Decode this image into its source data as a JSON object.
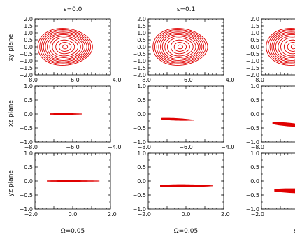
{
  "figure": {
    "colors": {
      "curve": "#e00000",
      "axes": "#000000",
      "text": "#111111"
    },
    "row_labels": [
      "xy plane",
      "xz plane",
      "yz plane"
    ],
    "column_titles": [
      "ε=0.0",
      "ε=0.1",
      "ε="
    ],
    "column_xlabels": [
      "Ω=0.05",
      "Ω=0.05",
      "Ω="
    ],
    "note": ""
  },
  "chart_data": [
    {
      "type": "line",
      "panel": "xy-eps-0.0",
      "row": 0,
      "col": 0,
      "xlim": [
        -8.0,
        -4.0
      ],
      "ylim": [
        -2.0,
        2.0
      ],
      "xticks": [
        "−8.0",
        "−6.0",
        "−4.0"
      ],
      "xtick_values": [
        -8.0,
        -6.0,
        -4.0
      ],
      "yticks": [
        "2.0",
        "1.5",
        "1.0",
        "0.5",
        "0.0",
        "−0.5",
        "−1.0",
        "−1.5",
        "−2.0"
      ],
      "ytick_values": [
        2.0,
        1.5,
        1.0,
        0.5,
        0.0,
        -0.5,
        -1.0,
        -1.5,
        -2.0
      ],
      "series": [
        {
          "curve": "nested-rings",
          "center": [
            -6.4,
            0.0
          ],
          "rx": [
            1.45,
            1.35,
            1.25,
            1.15,
            1.05,
            0.95,
            0.82,
            0.68,
            0.5,
            0.32,
            0.13
          ],
          "ry": [
            1.32,
            1.23,
            1.15,
            1.06,
            0.97,
            0.88,
            0.77,
            0.65,
            0.49,
            0.32,
            0.14
          ],
          "skew": -0.1
        }
      ]
    },
    {
      "type": "line",
      "panel": "xy-eps-0.1",
      "row": 0,
      "col": 1,
      "xlim": [
        -8.0,
        -4.0
      ],
      "ylim": [
        -2.0,
        2.0
      ],
      "xticks": [
        "−8.0",
        "−6.0",
        "−4.0"
      ],
      "xtick_values": [
        -8.0,
        -6.0,
        -4.0
      ],
      "yticks": [
        "2.0",
        "1.5",
        "1.0",
        "0.5",
        "0.0",
        "−0.5",
        "−1.0",
        "−1.5",
        "−2.0"
      ],
      "ytick_values": [
        2.0,
        1.5,
        1.0,
        0.5,
        0.0,
        -0.5,
        -1.0,
        -1.5,
        -2.0
      ],
      "series": [
        {
          "curve": "nested-rings",
          "center": [
            -6.3,
            0.0
          ],
          "rx": [
            1.45,
            1.35,
            1.25,
            1.15,
            1.05,
            0.95,
            0.82,
            0.68,
            0.5,
            0.32,
            0.13
          ],
          "ry": [
            1.32,
            1.23,
            1.15,
            1.06,
            0.97,
            0.88,
            0.77,
            0.65,
            0.49,
            0.32,
            0.14
          ],
          "skew": -0.1
        }
      ]
    },
    {
      "type": "line",
      "panel": "xy-eps-clipped",
      "row": 0,
      "col": 2,
      "xlim": [
        -8.0,
        -4.0
      ],
      "ylim": [
        -2.0,
        2.0
      ],
      "xticks": [
        "−8.0"
      ],
      "xtick_values": [
        -8.0
      ],
      "yticks": [
        "2.0",
        "1.5",
        "1.0",
        "0.5",
        "0.0",
        "−0.5",
        "−1.0",
        "−1.5",
        "−2.0"
      ],
      "ytick_values": [
        2.0,
        1.5,
        1.0,
        0.5,
        0.0,
        -0.5,
        -1.0,
        -1.5,
        -2.0
      ],
      "series": [
        {
          "curve": "nested-rings",
          "center": [
            -6.3,
            0.0
          ],
          "rx": [
            1.45,
            1.35,
            1.25,
            1.15,
            1.05,
            0.95,
            0.82,
            0.68,
            0.5,
            0.32,
            0.13
          ],
          "ry": [
            1.32,
            1.23,
            1.15,
            1.06,
            0.97,
            0.88,
            0.77,
            0.65,
            0.49,
            0.32,
            0.14
          ],
          "skew": -0.1
        }
      ]
    },
    {
      "type": "line",
      "panel": "xz-eps-0.0",
      "row": 1,
      "col": 0,
      "xlim": [
        -8.0,
        -4.0
      ],
      "ylim": [
        -1.0,
        1.0
      ],
      "xticks": [
        "−8.0",
        "−6.0",
        "−4.0"
      ],
      "xtick_values": [
        -8.0,
        -6.0,
        -4.0
      ],
      "yticks": [
        "1.0",
        "0.5",
        "0.0",
        "−0.5",
        "−1.0"
      ],
      "ytick_values": [
        1.0,
        0.5,
        0.0,
        -0.5,
        -1.0
      ],
      "series": [
        {
          "curve": "band",
          "x": [
            -7.2,
            -5.5
          ],
          "y": [
            0.0,
            0.0
          ],
          "half_width": 0.015
        }
      ]
    },
    {
      "type": "line",
      "panel": "xz-eps-0.1",
      "row": 1,
      "col": 1,
      "xlim": [
        -8.0,
        -4.0
      ],
      "ylim": [
        -1.0,
        1.0
      ],
      "xticks": [
        "−8.0",
        "−6.0",
        "−4.0"
      ],
      "xtick_values": [
        -8.0,
        -6.0,
        -4.0
      ],
      "yticks": [
        "1.0",
        "0.5",
        "0.0",
        "−0.5",
        "−1.0"
      ],
      "ytick_values": [
        1.0,
        0.5,
        0.0,
        -0.5,
        -1.0
      ],
      "series": [
        {
          "curve": "band",
          "x": [
            -7.3,
            -5.6
          ],
          "y": [
            -0.17,
            -0.22
          ],
          "half_width": 0.03
        }
      ]
    },
    {
      "type": "line",
      "panel": "xz-eps-clipped",
      "row": 1,
      "col": 2,
      "xlim": [
        -8.0,
        -4.0
      ],
      "ylim": [
        -1.0,
        1.0
      ],
      "xticks": [
        "−8.0"
      ],
      "xtick_values": [
        -8.0
      ],
      "yticks": [
        "1.0",
        "0.5",
        "0.0",
        "−0.5",
        "−1.0"
      ],
      "ytick_values": [
        1.0,
        0.5,
        0.0,
        -0.5,
        -1.0
      ],
      "series": [
        {
          "curve": "band",
          "x": [
            -7.4,
            -5.5
          ],
          "y": [
            -0.33,
            -0.44
          ],
          "half_width": 0.05
        }
      ]
    },
    {
      "type": "line",
      "panel": "yz-eps-0.0",
      "row": 2,
      "col": 0,
      "xlim": [
        -2.0,
        2.0
      ],
      "ylim": [
        -1.0,
        1.0
      ],
      "xticks": [
        "−2.0",
        "0.0",
        "2.0"
      ],
      "xtick_values": [
        -2.0,
        0.0,
        2.0
      ],
      "yticks": [
        "1.0",
        "0.5",
        "0.0",
        "−0.5",
        "−1.0"
      ],
      "ytick_values": [
        1.0,
        0.5,
        0.0,
        -0.5,
        -1.0
      ],
      "series": [
        {
          "curve": "band",
          "x": [
            -1.35,
            1.4
          ],
          "y": [
            0.0,
            0.0
          ],
          "half_width": 0.012
        }
      ]
    },
    {
      "type": "line",
      "panel": "yz-eps-0.1",
      "row": 2,
      "col": 1,
      "xlim": [
        -2.0,
        2.0
      ],
      "ylim": [
        -1.0,
        1.0
      ],
      "xticks": [
        "−2.0",
        "0.0",
        "2.0"
      ],
      "xtick_values": [
        -2.0,
        0.0,
        2.0
      ],
      "yticks": [
        "1.0",
        "0.5",
        "0.0",
        "−0.5",
        "−1.0"
      ],
      "ytick_values": [
        1.0,
        0.5,
        0.0,
        -0.5,
        -1.0
      ],
      "series": [
        {
          "curve": "band",
          "x": [
            -1.35,
            1.4
          ],
          "y": [
            -0.17,
            -0.17
          ],
          "half_width": 0.04
        }
      ]
    },
    {
      "type": "line",
      "panel": "yz-eps-clipped",
      "row": 2,
      "col": 2,
      "xlim": [
        -2.0,
        2.0
      ],
      "ylim": [
        -1.0,
        1.0
      ],
      "xticks": [
        "−2.0"
      ],
      "xtick_values": [
        -2.0
      ],
      "yticks": [
        "1.0",
        "0.5",
        "0.0",
        "−0.5",
        "−1.0"
      ],
      "ytick_values": [
        1.0,
        0.5,
        0.0,
        -0.5,
        -1.0
      ],
      "series": [
        {
          "curve": "band",
          "x": [
            -1.3,
            1.4
          ],
          "y": [
            -0.33,
            -0.38
          ],
          "half_width": 0.07
        }
      ]
    }
  ]
}
